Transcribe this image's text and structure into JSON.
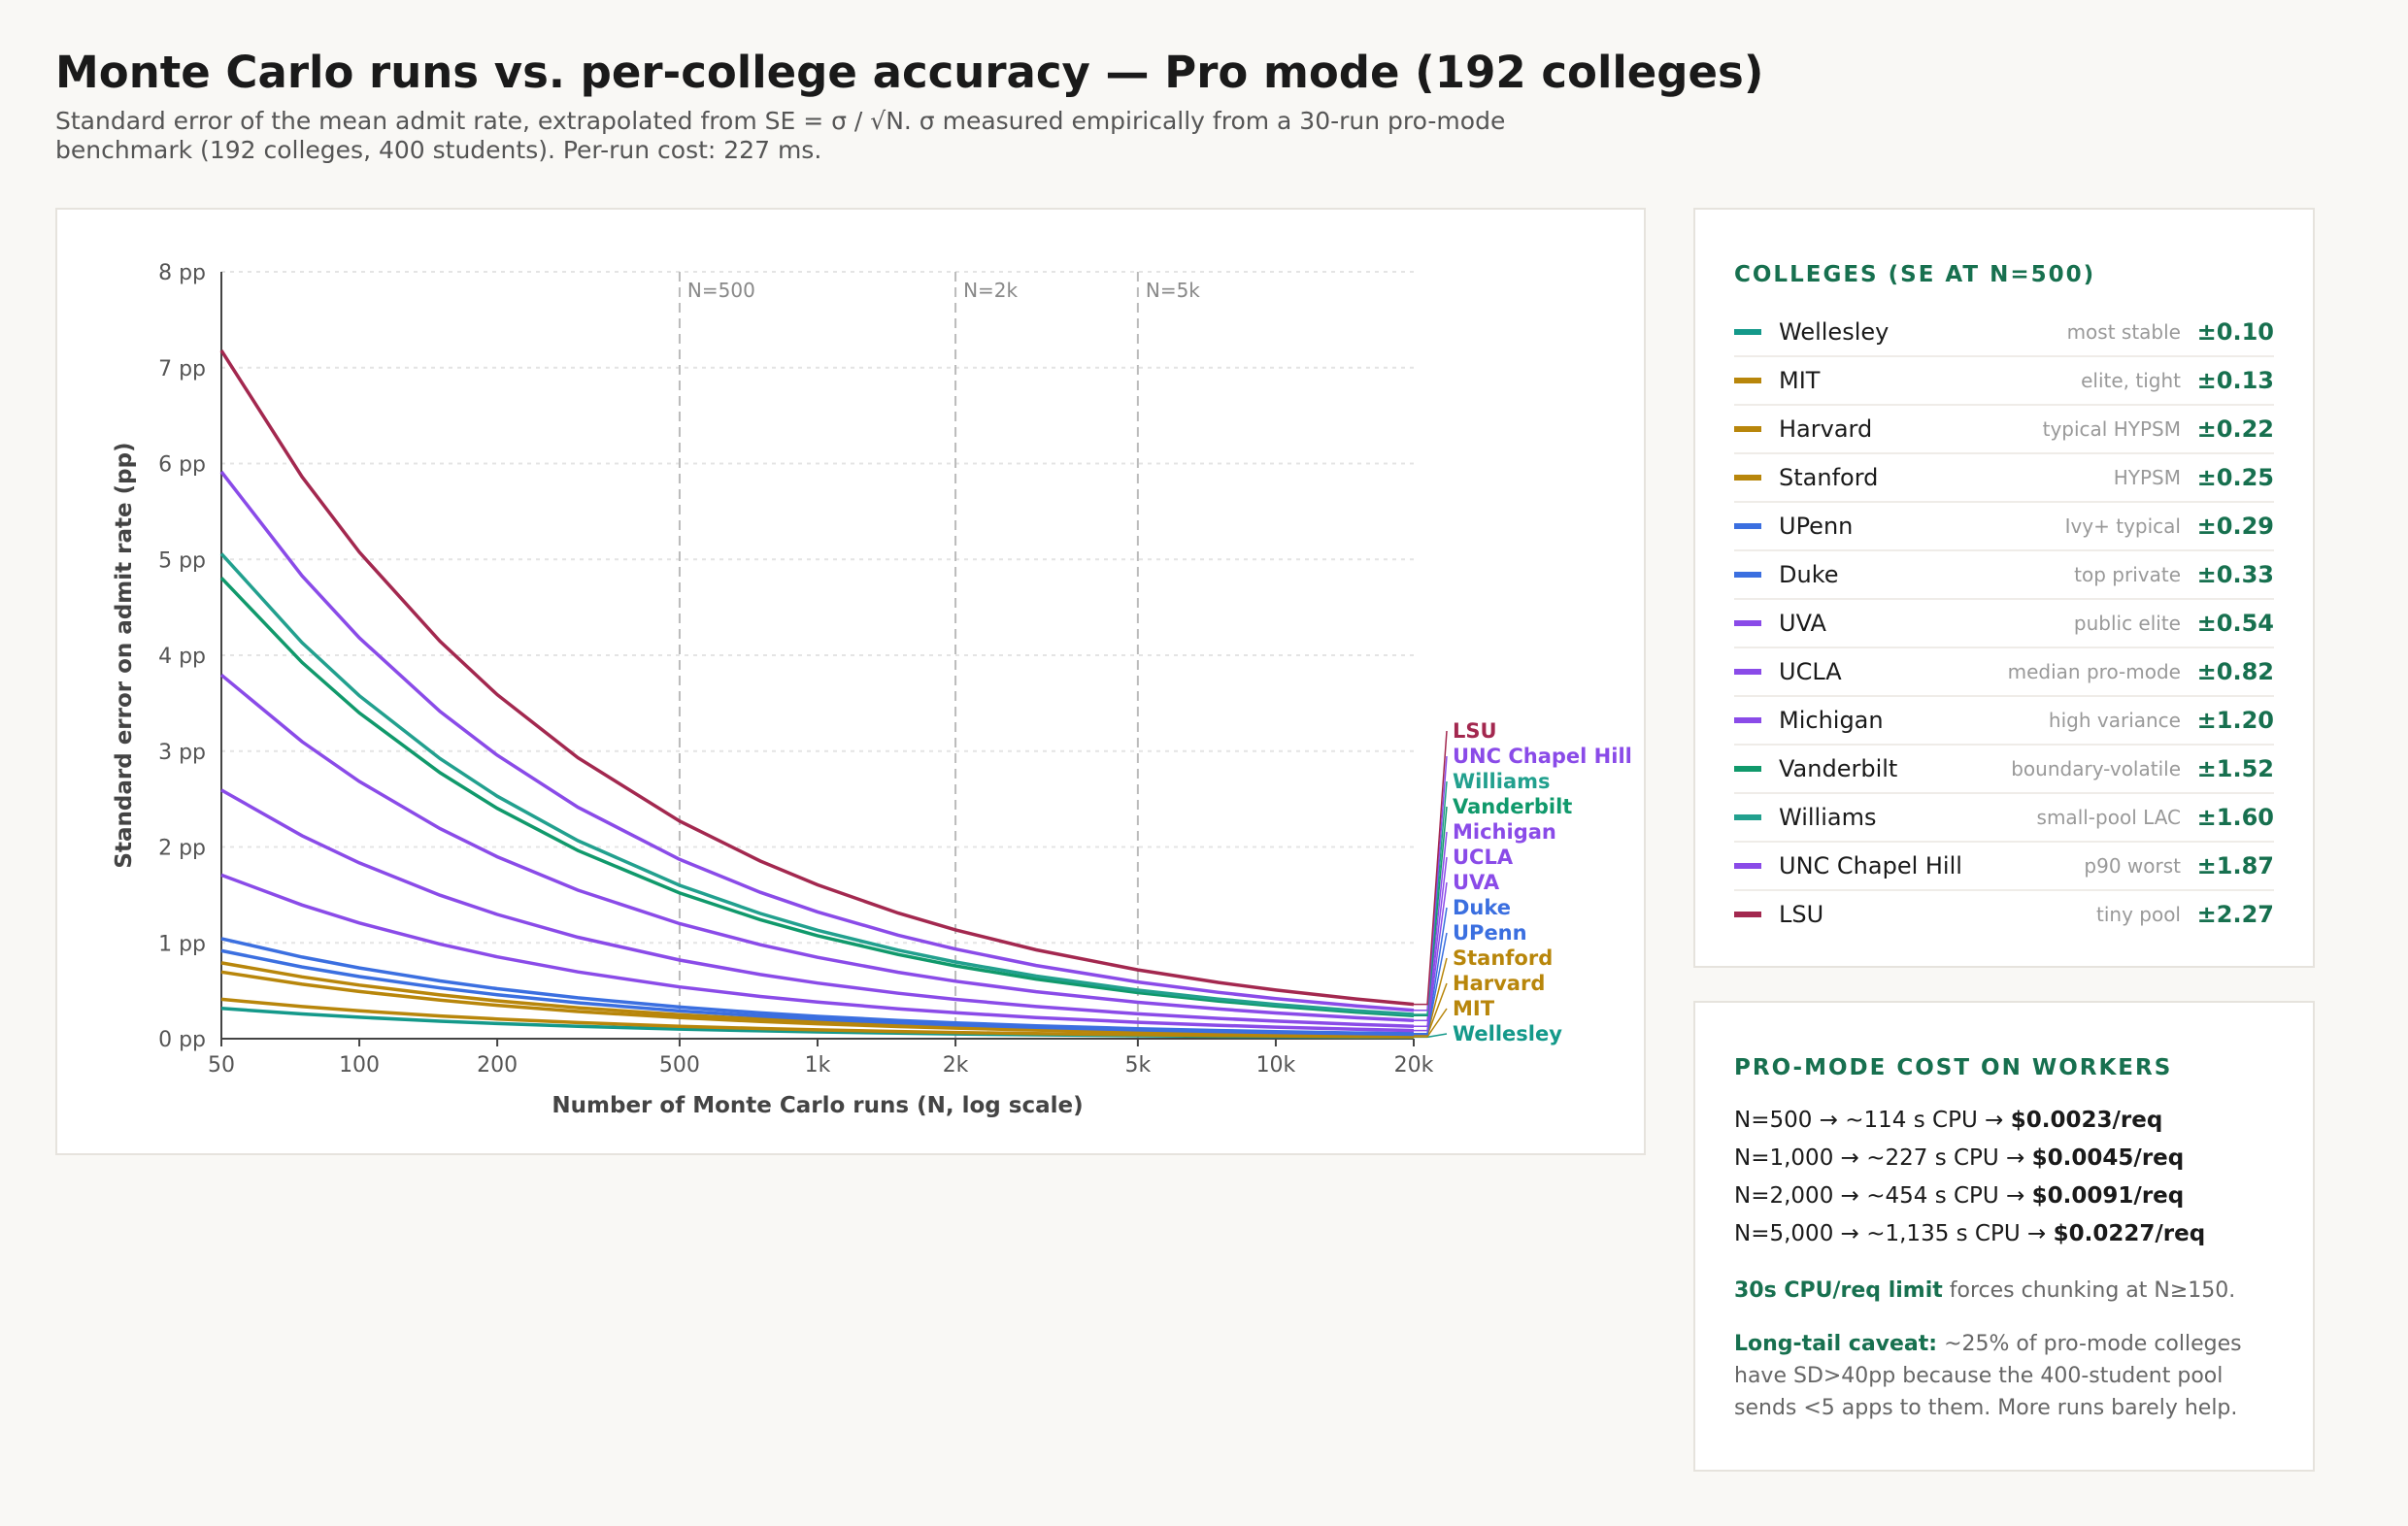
{
  "header": {
    "title": "Monte Carlo runs vs. per-college accuracy — Pro mode (192 colleges)",
    "subtitle": "Standard error of the mean admit rate, extrapolated from SE = σ / √N. σ measured empirically from a 30-run pro-mode benchmark (192 colleges, 400 students). Per-run cost: 227 ms."
  },
  "chart_data": {
    "type": "line",
    "xlabel": "Number of Monte Carlo runs (N, log scale)",
    "ylabel": "Standard error on admit rate (pp)",
    "x_scale": "log",
    "xlim": [
      50,
      20000
    ],
    "ylim": [
      0,
      8
    ],
    "x_ticks": [
      {
        "v": 50,
        "label": "50"
      },
      {
        "v": 100,
        "label": "100"
      },
      {
        "v": 200,
        "label": "200"
      },
      {
        "v": 500,
        "label": "500"
      },
      {
        "v": 1000,
        "label": "1k"
      },
      {
        "v": 2000,
        "label": "2k"
      },
      {
        "v": 5000,
        "label": "5k"
      },
      {
        "v": 10000,
        "label": "10k"
      },
      {
        "v": 20000,
        "label": "20k"
      }
    ],
    "y_ticks": [
      {
        "v": 0,
        "label": "0 pp"
      },
      {
        "v": 1,
        "label": "1 pp"
      },
      {
        "v": 2,
        "label": "2 pp"
      },
      {
        "v": 3,
        "label": "3 pp"
      },
      {
        "v": 4,
        "label": "4 pp"
      },
      {
        "v": 5,
        "label": "5 pp"
      },
      {
        "v": 6,
        "label": "6 pp"
      },
      {
        "v": 7,
        "label": "7 pp"
      },
      {
        "v": 8,
        "label": "8 pp"
      }
    ],
    "grid": "horizontal dotted",
    "reference_lines": [
      {
        "x": 500,
        "label": "N=500"
      },
      {
        "x": 2000,
        "label": "N=2k"
      },
      {
        "x": 5000,
        "label": "N=5k"
      }
    ],
    "x": [
      50,
      75,
      100,
      150,
      200,
      300,
      500,
      750,
      1000,
      1500,
      2000,
      3000,
      5000,
      7500,
      10000,
      15000,
      20000
    ],
    "formula_note": "SE = σ / √N",
    "series": [
      {
        "name": "Wellesley",
        "se_at_500": 0.1,
        "color": "#14998a"
      },
      {
        "name": "MIT",
        "se_at_500": 0.13,
        "color": "#b8860b"
      },
      {
        "name": "Harvard",
        "se_at_500": 0.22,
        "color": "#b8860b"
      },
      {
        "name": "Stanford",
        "se_at_500": 0.25,
        "color": "#b8860b"
      },
      {
        "name": "UPenn",
        "se_at_500": 0.29,
        "color": "#3b6fe0"
      },
      {
        "name": "Duke",
        "se_at_500": 0.33,
        "color": "#3b6fe0"
      },
      {
        "name": "UVA",
        "se_at_500": 0.54,
        "color": "#8a4be8"
      },
      {
        "name": "UCLA",
        "se_at_500": 0.82,
        "color": "#8a4be8"
      },
      {
        "name": "Michigan",
        "se_at_500": 1.2,
        "color": "#8a4be8"
      },
      {
        "name": "Vanderbilt",
        "se_at_500": 1.52,
        "color": "#10996b"
      },
      {
        "name": "Williams",
        "se_at_500": 1.6,
        "color": "#22a08e"
      },
      {
        "name": "UNC Chapel Hill",
        "se_at_500": 1.87,
        "color": "#8a4be8"
      },
      {
        "name": "LSU",
        "se_at_500": 2.27,
        "color": "#a3284f"
      }
    ]
  },
  "legend": {
    "title": "COLLEGES (SE AT N=500)",
    "items": [
      {
        "name": "Wellesley",
        "note": "most stable",
        "value": "±0.10",
        "color": "#14998a"
      },
      {
        "name": "MIT",
        "note": "elite, tight",
        "value": "±0.13",
        "color": "#b8860b"
      },
      {
        "name": "Harvard",
        "note": "typical HYPSM",
        "value": "±0.22",
        "color": "#b8860b"
      },
      {
        "name": "Stanford",
        "note": "HYPSM",
        "value": "±0.25",
        "color": "#b8860b"
      },
      {
        "name": "UPenn",
        "note": "Ivy+ typical",
        "value": "±0.29",
        "color": "#3b6fe0"
      },
      {
        "name": "Duke",
        "note": "top private",
        "value": "±0.33",
        "color": "#3b6fe0"
      },
      {
        "name": "UVA",
        "note": "public elite",
        "value": "±0.54",
        "color": "#8a4be8"
      },
      {
        "name": "UCLA",
        "note": "median pro-mode",
        "value": "±0.82",
        "color": "#8a4be8"
      },
      {
        "name": "Michigan",
        "note": "high variance",
        "value": "±1.20",
        "color": "#8a4be8"
      },
      {
        "name": "Vanderbilt",
        "note": "boundary-volatile",
        "value": "±1.52",
        "color": "#10996b"
      },
      {
        "name": "Williams",
        "note": "small-pool LAC",
        "value": "±1.60",
        "color": "#22a08e"
      },
      {
        "name": "UNC Chapel Hill",
        "note": "p90 worst",
        "value": "±1.87",
        "color": "#8a4be8"
      },
      {
        "name": "LSU",
        "note": "tiny pool",
        "value": "±2.27",
        "color": "#a3284f"
      }
    ]
  },
  "cost": {
    "title": "PRO-MODE COST ON WORKERS",
    "lines": [
      {
        "text": "N=500 → ~114 s CPU → ",
        "bold": "$0.0023/req"
      },
      {
        "text": "N=1,000 → ~227 s CPU → ",
        "bold": "$0.0045/req"
      },
      {
        "text": "N=2,000 → ~454 s CPU → ",
        "bold": "$0.0091/req"
      },
      {
        "text": "N=5,000 → ~1,135 s CPU → ",
        "bold": "$0.0227/req"
      }
    ],
    "limit_bold": "30s CPU/req limit",
    "limit_text": " forces chunking at N≥150.",
    "caveat_bold": "Long-tail caveat:",
    "caveat_text": " ~25% of pro-mode colleges have SD>40pp because the 400-student pool sends <5 apps to them. More runs barely help."
  }
}
